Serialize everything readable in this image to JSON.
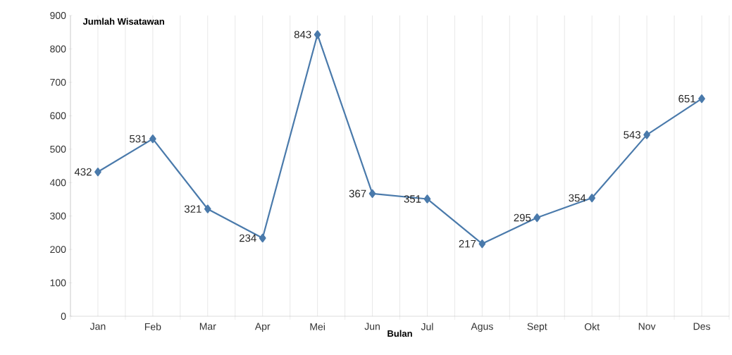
{
  "chart_data": {
    "type": "line",
    "xlabel": "Bulan",
    "ylabel": "Jumlah Wisatawan",
    "categories": [
      "Jan",
      "Feb",
      "Mar",
      "Apr",
      "Mei",
      "Jun",
      "Jul",
      "Agus",
      "Sept",
      "Okt",
      "Nov",
      "Des"
    ],
    "values": [
      432,
      531,
      321,
      234,
      843,
      367,
      351,
      217,
      295,
      354,
      543,
      651
    ],
    "color": "#4a7aab",
    "marker": "diamond",
    "data_labels": true,
    "grid": "x",
    "ylim": [
      0,
      900
    ],
    "yticks": [
      0,
      100,
      200,
      300,
      400,
      500,
      600,
      700,
      800,
      900
    ]
  }
}
